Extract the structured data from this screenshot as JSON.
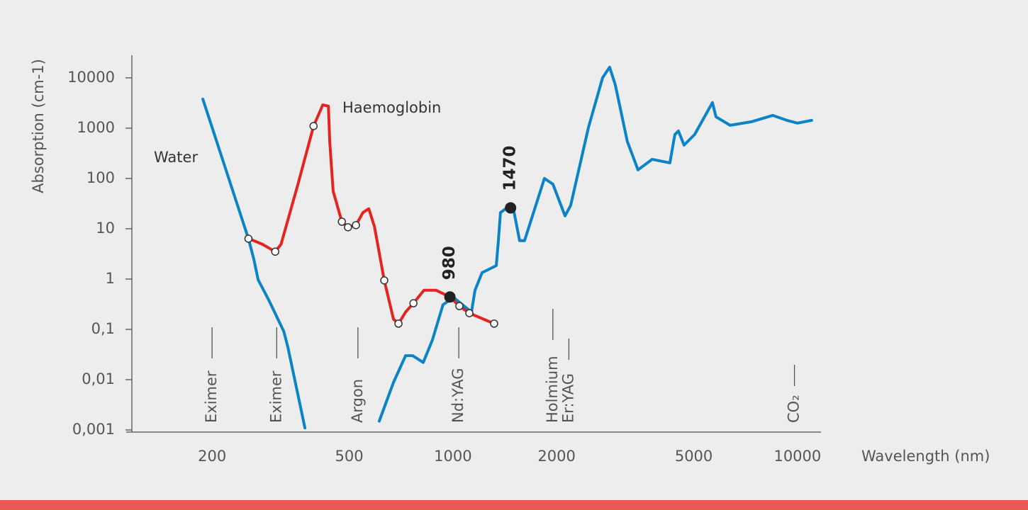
{
  "chart_data": {
    "type": "line",
    "x_label": "Wavelength (nm)",
    "y_label": "Absorption (cm-1)",
    "xscale": "log",
    "yscale": "log",
    "xlim": [
      117,
      11700
    ],
    "ylim": [
      0.001,
      30000
    ],
    "xticks": [
      200,
      500,
      1000,
      2000,
      5000,
      10000
    ],
    "yticks": [
      {
        "value": 0.001,
        "label": "0,001"
      },
      {
        "value": 0.01,
        "label": "0,01"
      },
      {
        "value": 0.1,
        "label": "0,1"
      },
      1,
      10,
      100,
      1000,
      10000
    ],
    "series": [
      {
        "name": "Water",
        "color": "#0a84c6",
        "x": [
          188,
          255,
          264,
          272,
          293,
          323,
          332,
          372,
          null,
          611,
          672,
          729,
          764,
          820,
          872,
          936,
          1005,
          1132,
          1159,
          1215,
          1336,
          1355,
          1374,
          1434,
          1503,
          1561,
          1614,
          1843,
          1951,
          2115,
          2196,
          2473,
          2718,
          2850,
          2960,
          3208,
          3445,
          3787,
          4263,
          4406,
          4512,
          4686,
          5030,
          5664,
          5800,
          6375,
          7348,
          8472,
          9314,
          10000,
          10990
        ],
        "values": [
          3780,
          6.35,
          2.56,
          0.97,
          0.366,
          0.091,
          0.044,
          0.0011,
          null,
          0.0015,
          0.0088,
          0.03,
          0.03,
          0.022,
          0.062,
          0.31,
          0.43,
          0.22,
          0.6,
          1.34,
          1.85,
          5.8,
          21,
          26,
          22,
          5.8,
          5.8,
          100,
          77,
          18,
          29,
          1030,
          10000,
          16300,
          7230,
          540,
          148,
          240,
          204,
          746,
          879,
          459,
          746,
          3210,
          1680,
          1140,
          1340,
          1790,
          1430,
          1260,
          1430
        ]
      },
      {
        "name": "Haemoglobin",
        "color": "#e52421",
        "x": [
          255,
          264,
          280,
          305,
          317,
          355,
          394,
          419,
          435,
          439,
          449,
          476,
          496,
          523,
          548,
          570,
          592,
          632,
          672,
          695,
          729,
          768,
          824,
          893,
          980,
          1044,
          1116,
          1317
        ],
        "values": [
          6.35,
          5.8,
          4.9,
          3.5,
          4.9,
          77,
          1100,
          2900,
          2740,
          540,
          56,
          13.8,
          10.7,
          11.8,
          21,
          25,
          11,
          0.94,
          0.16,
          0.13,
          0.22,
          0.33,
          0.6,
          0.6,
          0.44,
          0.29,
          0.21,
          0.13
        ],
        "markers": [
          true,
          false,
          false,
          true,
          false,
          false,
          true,
          false,
          false,
          false,
          false,
          true,
          true,
          true,
          false,
          false,
          false,
          true,
          false,
          true,
          false,
          true,
          false,
          false,
          false,
          true,
          true,
          true
        ]
      }
    ],
    "highlights": [
      {
        "x": 980,
        "y": 0.44
      },
      {
        "x": 1470,
        "y": 26
      }
    ],
    "lasers": [
      {
        "label": "Eximer",
        "x": 200
      },
      {
        "label": "Eximer",
        "x": 308
      },
      {
        "label": "Argon",
        "x": 530
      },
      {
        "label": "Nd:YAG",
        "x": 1040
      },
      {
        "label": "Holmium",
        "x": 1950
      },
      {
        "label": "Er:YAG",
        "x": 2170
      },
      {
        "label": "CO₂",
        "x": 9800
      }
    ]
  }
}
